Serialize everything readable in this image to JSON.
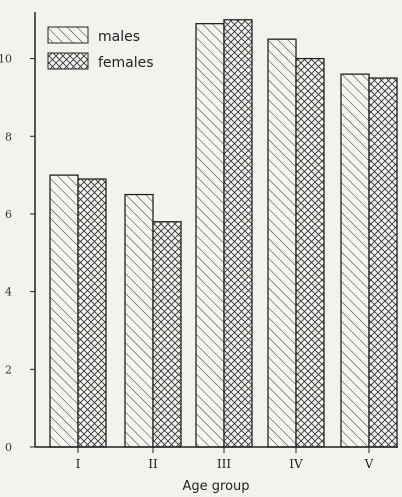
{
  "chart_data": {
    "type": "bar",
    "title": "",
    "xlabel": "Age group",
    "ylabel": "",
    "categories": [
      "I",
      "II",
      "III",
      "IV",
      "V"
    ],
    "series": [
      {
        "name": "males",
        "values": [
          7.0,
          6.5,
          10.9,
          10.5,
          9.6
        ],
        "pattern": "single-hatch"
      },
      {
        "name": "females",
        "values": [
          6.9,
          5.8,
          11.0,
          10.0,
          9.5
        ],
        "pattern": "cross-hatch"
      }
    ],
    "ylim": [
      0,
      11.2
    ],
    "yticks": [
      0,
      2,
      4,
      6,
      8,
      10
    ],
    "grid": false,
    "legend_position": "top-left"
  }
}
